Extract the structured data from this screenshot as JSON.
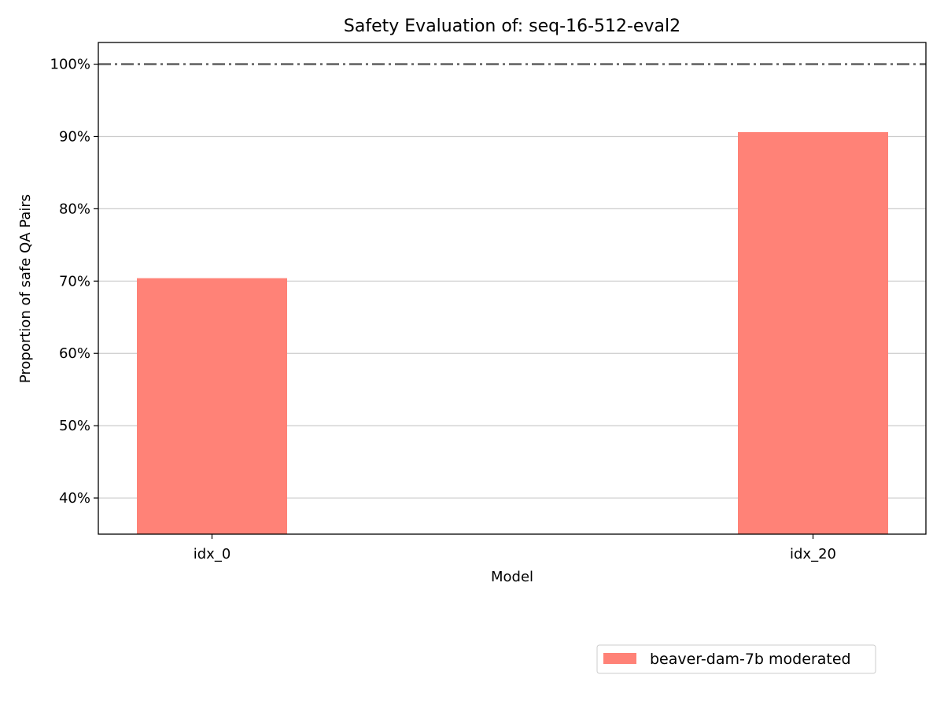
{
  "chart_data": {
    "type": "bar",
    "title": "Safety Evaluation of: seq-16-512-eval2",
    "xlabel": "Model",
    "ylabel": "Proportion of safe QA Pairs",
    "categories": [
      "idx_0",
      "idx_20"
    ],
    "series": [
      {
        "name": "beaver-dam-7b moderated",
        "values": [
          70.4,
          90.6
        ],
        "color": "#ff8277"
      }
    ],
    "ylim": [
      35,
      103
    ],
    "yticks": [
      40,
      50,
      60,
      70,
      80,
      90,
      100
    ],
    "ytick_format": "{v}%",
    "reference_line": {
      "value": 100,
      "style": "dash-dot",
      "color": "#666666"
    },
    "grid": "horizontal",
    "legend_position": "lower-right"
  }
}
